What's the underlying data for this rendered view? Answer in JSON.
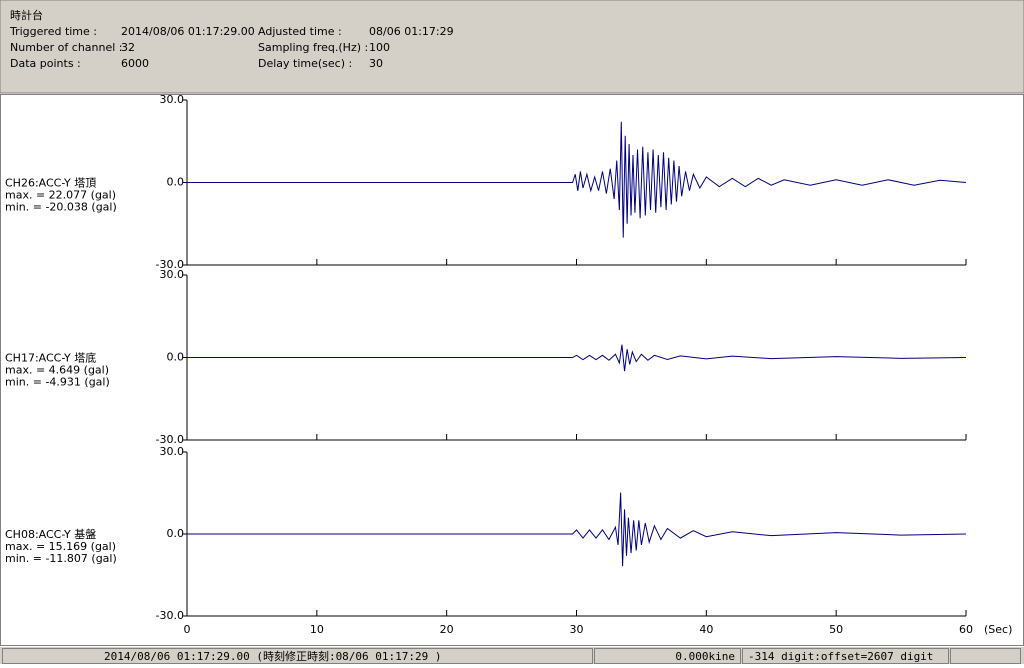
{
  "header": {
    "title": "時計台",
    "fields": [
      {
        "label": "Triggered time :",
        "value": "2014/08/06 01:17:29.00"
      },
      {
        "label": "Number of channel :",
        "value": "32"
      },
      {
        "label": "Data points :",
        "value": "6000"
      },
      {
        "label": "Adjusted time :",
        "value": "08/06 01:17:29"
      },
      {
        "label": "Sampling freq.(Hz) :",
        "value": "100"
      },
      {
        "label": "Delay time(sec) :",
        "value": "30"
      }
    ]
  },
  "chart_data": [
    {
      "type": "line",
      "channel": "CH26:ACC-Y 塔頂",
      "max_label": "max. = 22.077 (gal)",
      "min_label": "min. = -20.038 (gal)",
      "color": "#000080",
      "xlim": [
        0,
        60
      ],
      "xticks": [
        0,
        10,
        20,
        30,
        40,
        50,
        60
      ],
      "show_xtick_labels": false,
      "ylim": [
        -30,
        30
      ],
      "yticks": [
        {
          "value": -30,
          "label": "-30.0"
        },
        {
          "value": 0,
          "label": "0.0"
        },
        {
          "value": 30,
          "label": "30.0"
        }
      ],
      "x": [
        0,
        29.7,
        29.9,
        30.1,
        30.3,
        30.5,
        30.8,
        31.1,
        31.4,
        31.7,
        32,
        32.3,
        32.6,
        32.9,
        33.1,
        33.3,
        33.45,
        33.6,
        33.75,
        33.9,
        34.05,
        34.2,
        34.35,
        34.5,
        34.7,
        34.9,
        35.1,
        35.3,
        35.5,
        35.7,
        35.9,
        36.1,
        36.3,
        36.5,
        36.7,
        36.9,
        37.1,
        37.3,
        37.5,
        37.7,
        37.9,
        38.1,
        38.4,
        38.7,
        39,
        39.5,
        40,
        41,
        42,
        43,
        44,
        45,
        46,
        48,
        50,
        52,
        54,
        56,
        58,
        60
      ],
      "values": [
        0,
        0,
        3,
        -3,
        4,
        -2,
        3,
        -3,
        2,
        -3,
        4,
        -4,
        5,
        -6,
        8,
        -10,
        22.077,
        -20.038,
        17,
        -15,
        14,
        -12,
        10,
        -11,
        12,
        -13,
        13,
        -12,
        11,
        -10,
        12,
        -11,
        10,
        -9,
        11,
        -10,
        9,
        -8,
        8,
        -7,
        6,
        -5,
        4,
        -3,
        3,
        -2,
        2,
        -1.5,
        1.5,
        -1.5,
        1.5,
        -1,
        1,
        -1,
        1,
        -1,
        1,
        -1,
        0.8,
        0
      ]
    },
    {
      "type": "line",
      "channel": "CH17:ACC-Y 塔底",
      "max_label": "max. = 4.649 (gal)",
      "min_label": "min. = -4.931 (gal)",
      "color": "#000080",
      "xlim": [
        0,
        60
      ],
      "xticks": [
        0,
        10,
        20,
        30,
        40,
        50,
        60
      ],
      "show_xtick_labels": false,
      "ylim": [
        -30,
        30
      ],
      "yticks": [
        {
          "value": -30,
          "label": "-30.0"
        },
        {
          "value": 0,
          "label": "0.0"
        },
        {
          "value": 30,
          "label": "30.0"
        }
      ],
      "x": [
        0,
        29.7,
        30,
        30.5,
        31,
        31.5,
        32,
        32.5,
        33,
        33.3,
        33.5,
        33.7,
        33.9,
        34.1,
        34.3,
        34.6,
        35,
        35.5,
        36,
        37,
        38,
        40,
        42,
        45,
        50,
        55,
        60
      ],
      "values": [
        0,
        0,
        0.8,
        -0.8,
        0.8,
        -0.8,
        0.8,
        -1,
        1.2,
        -2,
        4.649,
        -4.931,
        3,
        -2.5,
        2,
        -1.5,
        1.2,
        -1,
        0.8,
        -0.7,
        0.6,
        -0.5,
        0.5,
        -0.4,
        0.3,
        -0.3,
        0
      ]
    },
    {
      "type": "line",
      "channel": "CH08:ACC-Y 基盤",
      "max_label": "max. = 15.169 (gal)",
      "min_label": "min. = -11.807 (gal)",
      "color": "#000080",
      "xlim": [
        0,
        60
      ],
      "xticks": [
        0,
        10,
        20,
        30,
        40,
        50,
        60
      ],
      "show_xtick_labels": true,
      "xlabel": "(Sec)",
      "ylim": [
        -30,
        30
      ],
      "yticks": [
        {
          "value": -30,
          "label": "-30.0"
        },
        {
          "value": 0,
          "label": "0.0"
        },
        {
          "value": 30,
          "label": "30.0"
        }
      ],
      "x": [
        0,
        29.7,
        30,
        30.5,
        31,
        31.5,
        32,
        32.5,
        33,
        33.2,
        33.4,
        33.55,
        33.7,
        33.85,
        34,
        34.2,
        34.4,
        34.6,
        34.8,
        35,
        35.3,
        35.6,
        36,
        36.5,
        37,
        38,
        39,
        40,
        42,
        45,
        50,
        55,
        60
      ],
      "values": [
        0,
        0,
        1.5,
        -1.5,
        1.5,
        -1.5,
        1.5,
        -2,
        2.5,
        -4,
        15.169,
        -11.807,
        9,
        -8,
        6,
        -7,
        5,
        -6,
        5,
        -4,
        4,
        -3,
        3,
        -2,
        2,
        -1.5,
        1.2,
        -1,
        0.8,
        -0.6,
        0.5,
        -0.4,
        0
      ]
    }
  ],
  "status": {
    "time": "2014/08/06 01:17:29.00  (時刻修正時刻:08/06 01:17:29  )",
    "velocity": "0.000kine",
    "digit": "-314 digit:offset=2607 digit"
  }
}
